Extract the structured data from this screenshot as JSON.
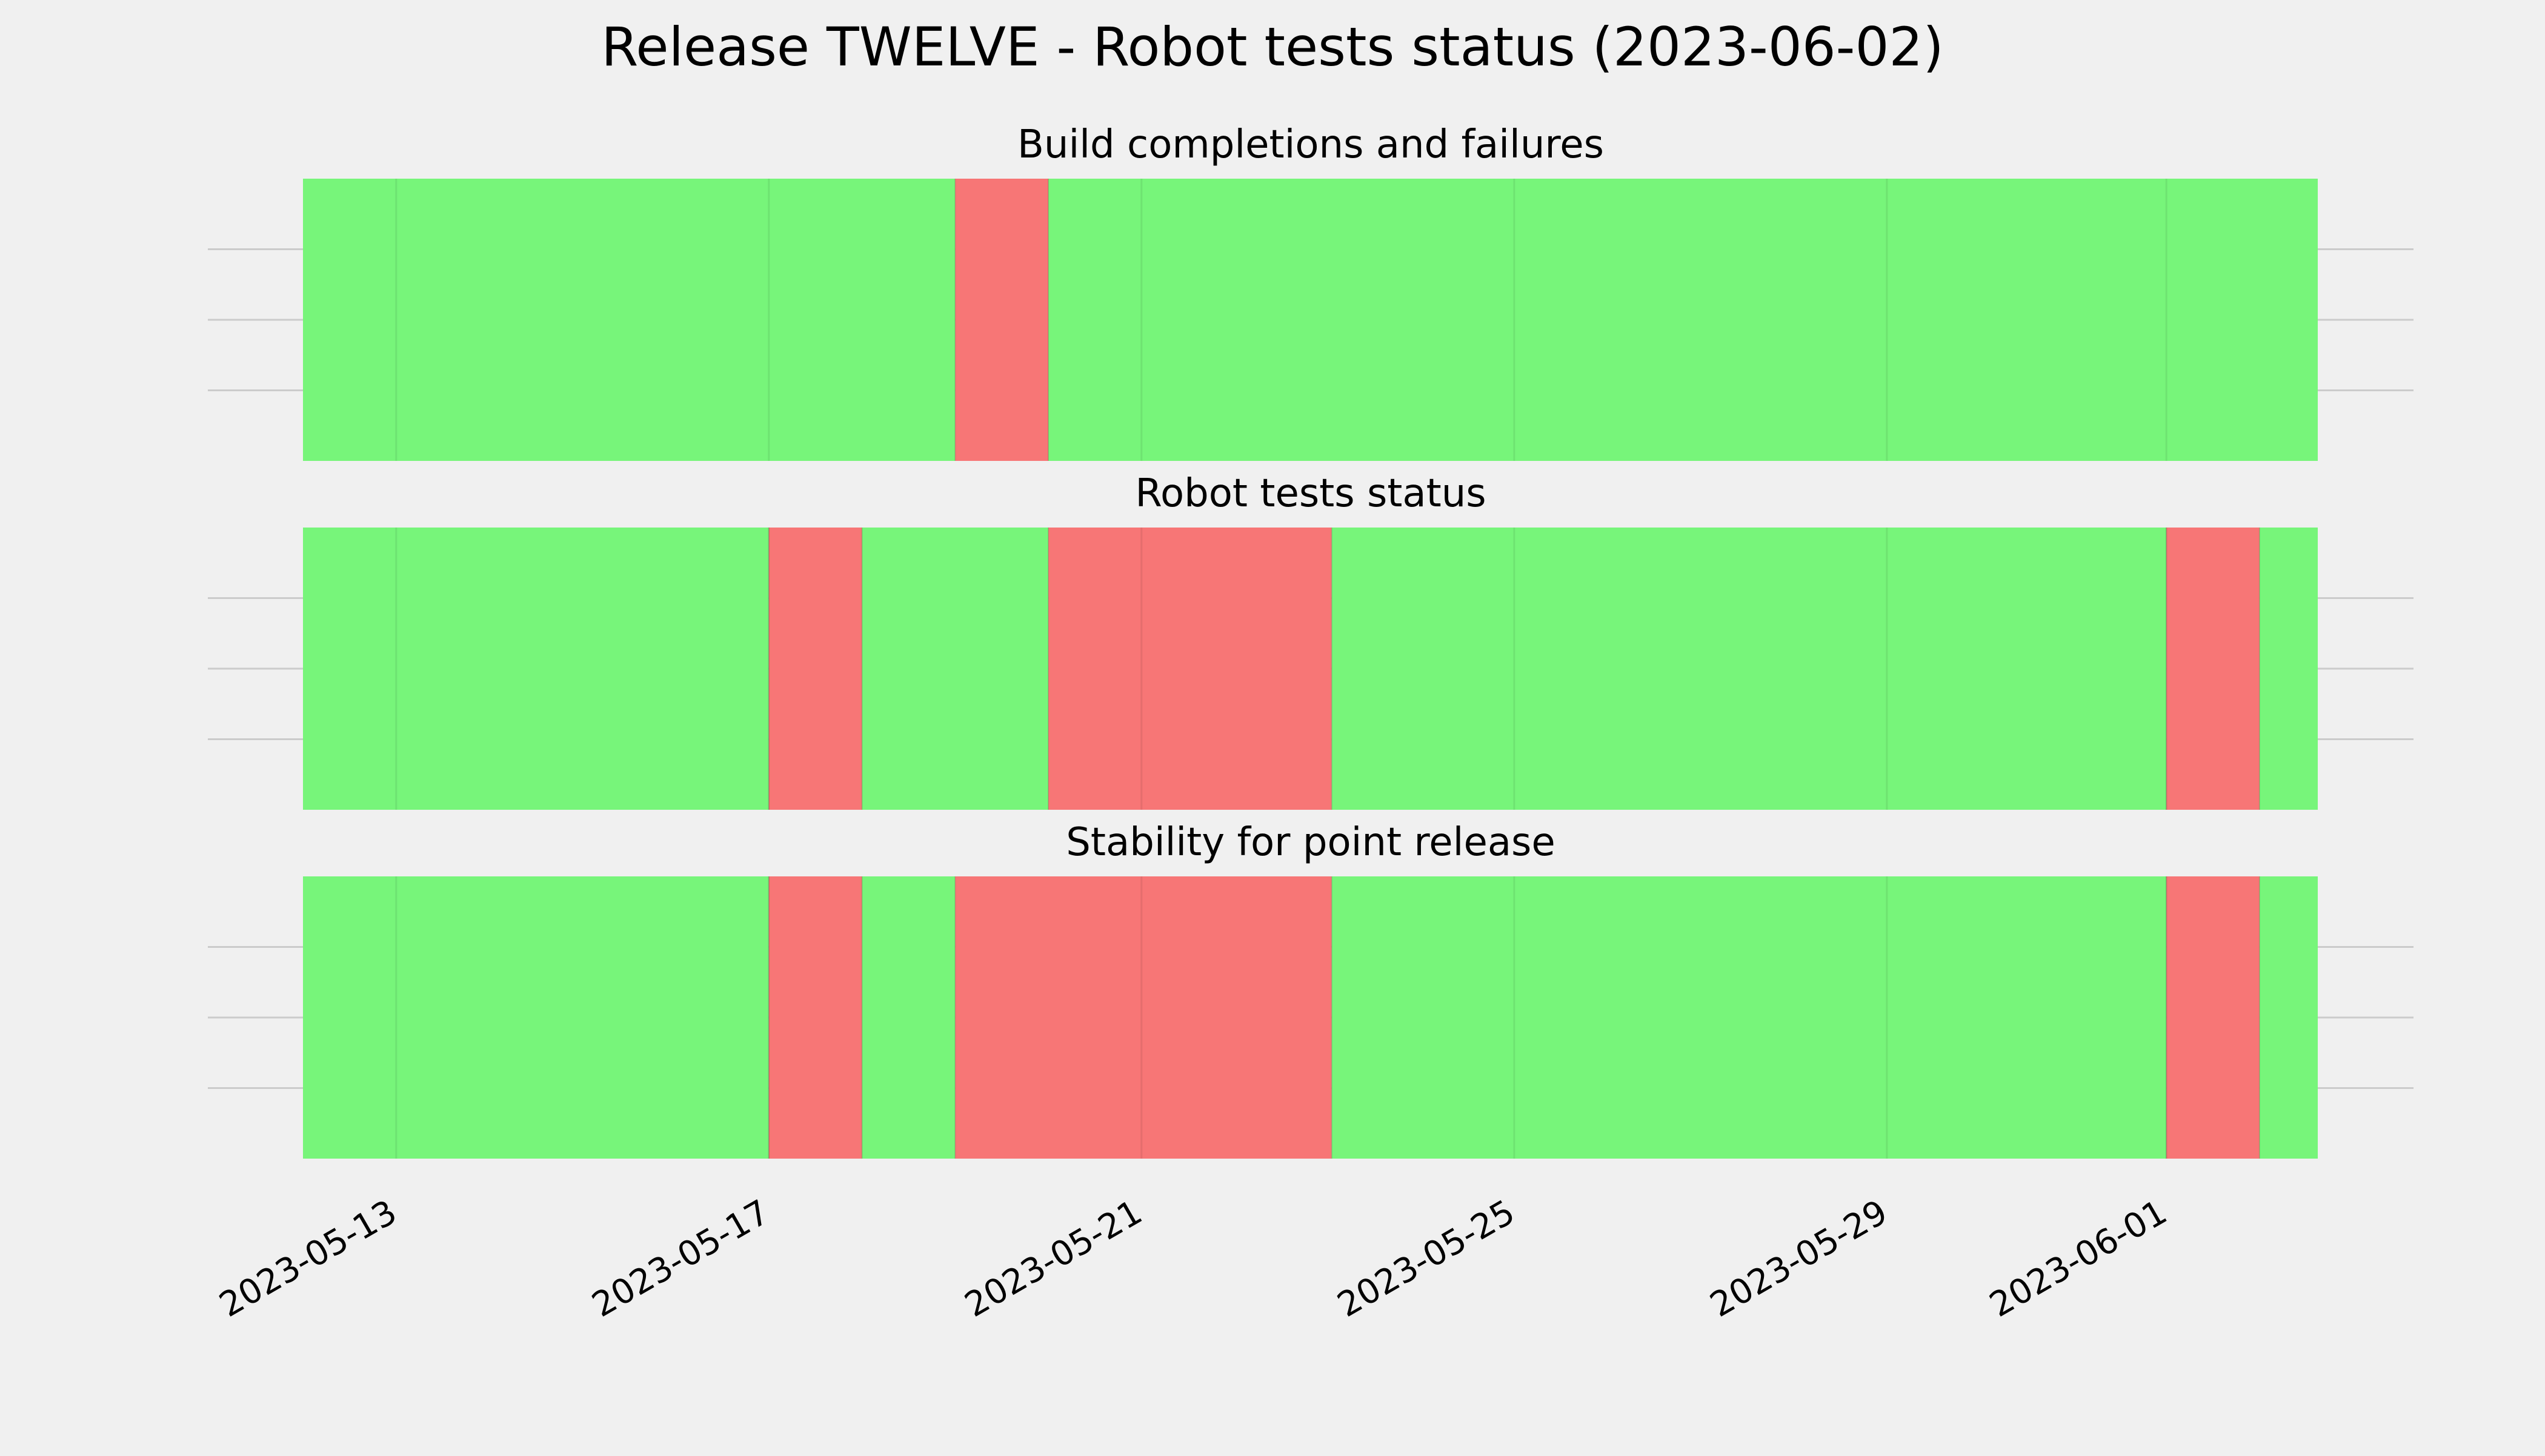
{
  "colors": {
    "background": "#f0f0f0",
    "ok": "#77f57a",
    "fail": "#f77676",
    "grid": "#cbcbcb",
    "text": "#000000"
  },
  "chart_data": {
    "type": "timeline",
    "title": "Release TWELVE - Robot tests status (2023-06-02)",
    "xlabel": "",
    "ylabel": "",
    "grid": true,
    "x_axis": {
      "type": "date",
      "ticks": [
        "2023-05-13",
        "2023-05-17",
        "2023-05-21",
        "2023-05-25",
        "2023-05-29",
        "2023-06-01"
      ],
      "xlim": [
        "2023-05-12",
        "2023-06-03"
      ]
    },
    "states": {
      "ok": "green",
      "fail": "red"
    },
    "panels": [
      {
        "title": "Build completions and failures",
        "segments": [
          {
            "start": "2023-05-12",
            "end": "2023-05-19",
            "status": "ok"
          },
          {
            "start": "2023-05-19",
            "end": "2023-05-20",
            "status": "fail"
          },
          {
            "start": "2023-05-20",
            "end": "2023-06-02 15:00",
            "status": "ok"
          }
        ]
      },
      {
        "title": "Robot tests status",
        "segments": [
          {
            "start": "2023-05-12",
            "end": "2023-05-17",
            "status": "ok"
          },
          {
            "start": "2023-05-17",
            "end": "2023-05-18",
            "status": "fail"
          },
          {
            "start": "2023-05-18",
            "end": "2023-05-20",
            "status": "ok"
          },
          {
            "start": "2023-05-20",
            "end": "2023-05-23 01:00",
            "status": "fail"
          },
          {
            "start": "2023-05-23 01:00",
            "end": "2023-06-01",
            "status": "ok"
          },
          {
            "start": "2023-06-01",
            "end": "2023-06-02",
            "status": "fail"
          },
          {
            "start": "2023-06-02",
            "end": "2023-06-02 15:00",
            "status": "ok"
          }
        ]
      },
      {
        "title": "Stability for point release",
        "segments": [
          {
            "start": "2023-05-12",
            "end": "2023-05-17",
            "status": "ok"
          },
          {
            "start": "2023-05-17",
            "end": "2023-05-18",
            "status": "fail"
          },
          {
            "start": "2023-05-18",
            "end": "2023-05-19",
            "status": "ok"
          },
          {
            "start": "2023-05-19",
            "end": "2023-05-23 01:00",
            "status": "fail"
          },
          {
            "start": "2023-05-23 01:00",
            "end": "2023-06-01",
            "status": "ok"
          },
          {
            "start": "2023-06-01",
            "end": "2023-06-02",
            "status": "fail"
          },
          {
            "start": "2023-06-02",
            "end": "2023-06-02 15:00",
            "status": "ok"
          }
        ]
      }
    ]
  }
}
